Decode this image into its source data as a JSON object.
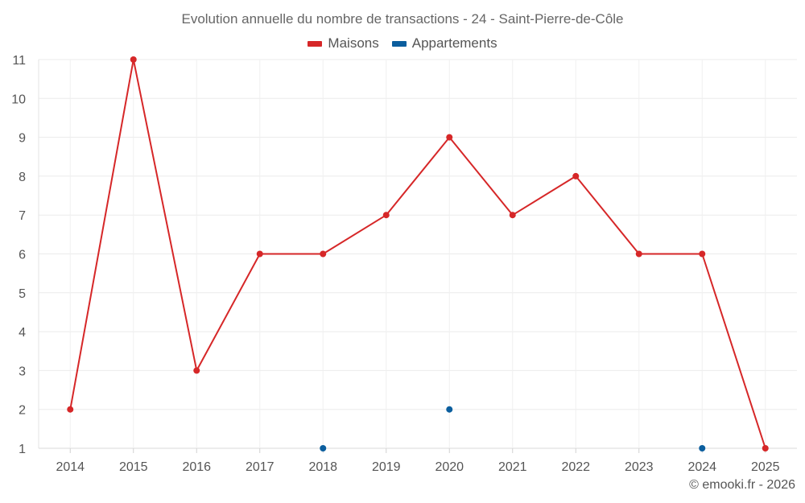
{
  "chart_data": {
    "type": "line",
    "title": "Evolution annuelle du nombre de transactions - 24 - Saint-Pierre-de-Côle",
    "categories": [
      "2014",
      "2015",
      "2016",
      "2017",
      "2018",
      "2019",
      "2020",
      "2021",
      "2022",
      "2023",
      "2024",
      "2025"
    ],
    "ylim": [
      1,
      11
    ],
    "yticks": [
      "1",
      "2",
      "3",
      "4",
      "5",
      "6",
      "7",
      "8",
      "9",
      "10",
      "11"
    ],
    "grid": true,
    "legend_position": "top-center",
    "series": [
      {
        "name": "Maisons",
        "color": "#d62728",
        "values": [
          2,
          11,
          3,
          6,
          6,
          7,
          9,
          7,
          8,
          6,
          6,
          1
        ]
      },
      {
        "name": "Appartements",
        "color": "#0b5e9e",
        "values": [
          null,
          null,
          null,
          null,
          1,
          null,
          2,
          null,
          null,
          null,
          1,
          null
        ]
      }
    ],
    "credit": "© emooki.fr - 2026"
  }
}
